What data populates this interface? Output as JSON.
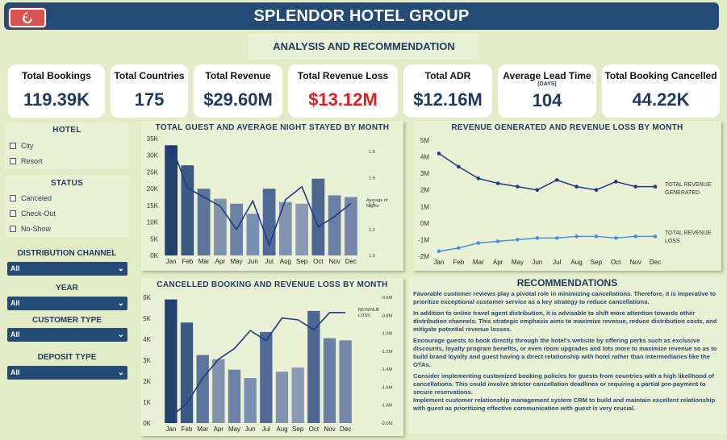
{
  "header": {
    "title": "SPLENDOR HOTEL GROUP"
  },
  "subtitle": "ANALYSIS AND RECOMMENDATION",
  "kpis": [
    {
      "label": "Total Bookings",
      "value": "119.39K",
      "sub": ""
    },
    {
      "label": "Total Countries",
      "value": "175",
      "sub": ""
    },
    {
      "label": "Total Revenue",
      "value": "$29.60M",
      "sub": ""
    },
    {
      "label": "Total Revenue Loss",
      "value": "$13.12M",
      "sub": ""
    },
    {
      "label": "Total ADR",
      "value": "$12.16M",
      "sub": ""
    },
    {
      "label": "Average Lead Time",
      "value": "104",
      "sub": "(DAYS)"
    },
    {
      "label": "Total Booking Cancelled",
      "value": "44.22K",
      "sub": ""
    }
  ],
  "filters": {
    "hotel": {
      "title": "HOTEL",
      "options": [
        "City",
        "Resort"
      ]
    },
    "status": {
      "title": "STATUS",
      "options": [
        "Canceled",
        "Check-Out",
        "No-Show"
      ]
    },
    "distribution_channel": {
      "title": "DISTRIBUTION CHANNEL",
      "value": "All"
    },
    "year": {
      "title": "YEAR",
      "value": "All"
    },
    "customer_type": {
      "title": "CUSTOMER TYPE",
      "value": "All"
    },
    "deposit_type": {
      "title": "DEPOSIT TYPE",
      "value": "All"
    }
  },
  "colors": {
    "header": "#244a76",
    "background": "#e3ecc7",
    "panel": "#eaf1d4",
    "loss": "#e02020",
    "line_dark": "#1f3a8a",
    "line_light": "#4a90d9"
  },
  "chart_data": [
    {
      "type": "bar",
      "title": "TOTAL GUEST AND AVERAGE NIGHT STAYED BY MONTH",
      "categories": [
        "Jan",
        "Feb",
        "Mar",
        "Apr",
        "May",
        "Jun",
        "Jul",
        "Aug",
        "Sep",
        "Oct",
        "Nov",
        "Dec"
      ],
      "y_ticks": [
        "0K",
        "5K",
        "10K",
        "15K",
        "20K",
        "25K",
        "30K",
        "35K"
      ],
      "ylim": [
        0,
        35000
      ],
      "y2_ticks": [
        "1.0",
        "1.2",
        "1.4",
        "1.6",
        "1.8"
      ],
      "y2lim": [
        1.0,
        1.9
      ],
      "y2_label": "Average of Nights",
      "series": [
        {
          "values": [
            33000,
            27000,
            20000,
            17000,
            15500,
            12500,
            20000,
            16000,
            15500,
            23000,
            18000,
            17500
          ]
        },
        {
          "name": "Average of Nights",
          "values": [
            1.85,
            1.52,
            1.45,
            1.38,
            1.2,
            1.42,
            1.08,
            1.43,
            1.53,
            1.22,
            1.3,
            1.4
          ]
        }
      ]
    },
    {
      "type": "line",
      "title": "REVENUE GENERATED AND REVENUE LOSS BY MONTH",
      "categories": [
        "Jan",
        "Feb",
        "Mar",
        "Apr",
        "May",
        "Jun",
        "Jul",
        "Aug",
        "Sep",
        "Oct",
        "Nov",
        "Dec"
      ],
      "y_ticks": [
        "-2M",
        "-1M",
        "0M",
        "1M",
        "2M",
        "3M",
        "4M",
        "5M"
      ],
      "ylim": [
        -2000000,
        5000000
      ],
      "series": [
        {
          "name": "TOTAL REVENUE GENERATED",
          "values": [
            4200000,
            3400000,
            2700000,
            2400000,
            2200000,
            2000000,
            2600000,
            2200000,
            2000000,
            2500000,
            2200000,
            2200000
          ]
        },
        {
          "name": "TOTAL REVENUE LOSS",
          "values": [
            -1700000,
            -1500000,
            -1200000,
            -1100000,
            -1000000,
            -900000,
            -900000,
            -800000,
            -800000,
            -900000,
            -800000,
            -800000
          ]
        }
      ]
    },
    {
      "type": "bar",
      "title": "CANCELLED BOOKING AND REVENUE LOSS BY MONTH",
      "categories": [
        "Jan",
        "Feb",
        "Mar",
        "Apr",
        "May",
        "Jun",
        "Jul",
        "Aug",
        "Sep",
        "Oct",
        "Nov",
        "Dec"
      ],
      "y_ticks": [
        "0K",
        "1K",
        "2K",
        "3K",
        "4K",
        "5K",
        "6K"
      ],
      "ylim": [
        0,
        6000
      ],
      "y2_ticks": [
        "-2.0M",
        "-1.8M",
        "-1.6M",
        "-1.4M",
        "-1.2M",
        "-1.0M",
        "-0.8M",
        "-0.6M"
      ],
      "y2lim": [
        -2000000,
        -600000
      ],
      "y2_label": "REVENUE LOSS",
      "series": [
        {
          "values": [
            5900,
            4800,
            3250,
            3050,
            2550,
            2150,
            4350,
            2450,
            2650,
            5350,
            4050,
            3950
          ]
        },
        {
          "name": "REVENUE LOSS",
          "values": [
            -1930000,
            -1780000,
            -1500000,
            -1290000,
            -1170000,
            -970000,
            -1080000,
            -830000,
            -850000,
            -960000,
            -770000,
            -770000
          ]
        }
      ]
    }
  ],
  "recommendations": {
    "title": "RECOMMENDATIONS",
    "items": [
      "Favorable customer reviews play a pivotal role in minimizing cancellations. Therefore, it is imperative to prioritize exceptional customer service as a key strategy to reduce cancellations.",
      "In addition to online travel agent distribution, it is advisable to shift more attention towards other distribution channels. This strategic emphasis aims to maximize revenue, reduce distribution costs, and mitigate potential revenue losses.",
      "Encourage guests to book directly through the hotel's website by offering perks such as exclusive discounts, loyalty program benefits, or even room upgrades and lots more to maximize revenue so as to build brand loyalty and guest having a direct relationship with hotel rather than intermediaries like the OTAs.",
      "Consider implementing customized booking policies for guests from countries with a high likelihood of cancellations. This could involve stricter cancellation deadlines or requiring a partial pre-payment to secure reservations.",
      "Implement customer relationship management system CRM to build and maintain excellent relationship with guest as prioritizing effective communication with guest is very crucial."
    ]
  }
}
